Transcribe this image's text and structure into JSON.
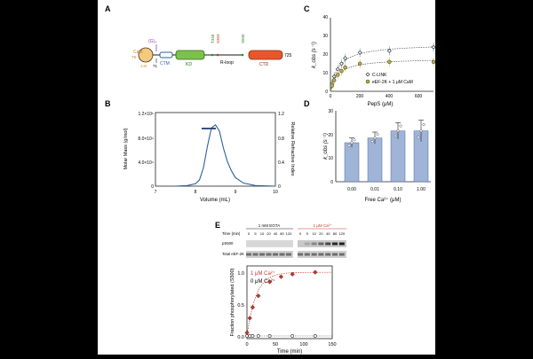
{
  "panels": {
    "A": {
      "label": "A",
      "domains": {
        "cam": "CaM",
        "cam_top": "79",
        "g": "(G)₄",
        "ctm": "CTM",
        "kd": "KD",
        "rloop": "R-loop",
        "ctd": "CTD",
        "pos_148": "148",
        "pos_71": "71",
        "t348": "T348",
        "s359": "S359",
        "s500": "S500",
        "end": "725"
      }
    },
    "B": {
      "label": "B",
      "left_ticks": [
        "1.2×10⁵",
        "8.0×10⁴",
        "4.0×10⁴",
        "0"
      ],
      "right_ticks": [
        "1.2",
        "0.8",
        "0.4",
        "0"
      ],
      "x_ticks": [
        "7",
        "8",
        "9",
        "10"
      ],
      "ylabel_left": "Molar Mass (g/mol)",
      "ylabel_right": "Relative Refractive Index",
      "xlabel": "Volume (mL)"
    },
    "C": {
      "label": "C",
      "y_ticks": [
        "0",
        "10",
        "20",
        "30",
        "40"
      ],
      "x_ticks": [
        "0",
        "200",
        "400",
        "600"
      ],
      "ylabel": "k_obs (s⁻¹)",
      "xlabel": "PepS (μM)",
      "legend": [
        "C-LINK",
        "eEF-2K + 1 μM CaM"
      ]
    },
    "D": {
      "label": "D",
      "y_ticks": [
        "0",
        "10",
        "20",
        "30"
      ],
      "x_ticks": [
        "0.00",
        "0.01",
        "0.10",
        "1.00"
      ],
      "ylabel": "k_obs (s⁻¹)",
      "xlabel": "Free Ca²⁺ (μM)"
    },
    "E": {
      "label": "E",
      "blot": {
        "egta_label": "1 mM EGTA",
        "ca_label": "1 μM Ca²⁺",
        "time_label": "Time (min)",
        "times": [
          "0",
          "5",
          "10",
          "20",
          "40",
          "80",
          "120"
        ],
        "row1": "pS500",
        "row2": "Total eEF-2K"
      },
      "y_ticks": [
        "0.0",
        "0.5",
        "1.0"
      ],
      "x_ticks": [
        "0",
        "50",
        "100",
        "150"
      ],
      "ylabel": "Fraction phosphorylated (S500)",
      "xlabel": "Time (min)",
      "legend_ca": "1 μM Ca²⁺",
      "legend_zero": "0 μM Ca²⁺"
    }
  },
  "colors": {
    "kd": "#7cc24a",
    "ctd": "#e8572a",
    "cam": "#f7c97e",
    "sec_curve": "#2f5f9e",
    "bar": "#9fb4d6",
    "red": "#c0392b",
    "olive": "#b5b33a",
    "orange": "#e99a2c",
    "purple": "#8e44ad"
  },
  "chart_data": [
    {
      "panel": "B",
      "type": "line",
      "x": [
        7.5,
        7.8,
        8.0,
        8.1,
        8.2,
        8.3,
        8.4,
        8.5,
        8.6,
        8.7,
        8.8,
        8.9,
        9.0,
        9.2,
        9.5,
        10.0
      ],
      "series": [
        {
          "values": [
            0.0,
            0.01,
            0.04,
            0.1,
            0.3,
            0.65,
            0.95,
            1.0,
            0.9,
            0.62,
            0.4,
            0.25,
            0.14,
            0.05,
            0.01,
            0.0
          ]
        }
      ],
      "xlim": [
        7,
        10
      ],
      "ylim": [
        0,
        1.2
      ]
    },
    {
      "panel": "C",
      "type": "scatter",
      "series": [
        {
          "name": "C-LINK",
          "x": [
            10,
            25,
            50,
            75,
            100,
            200,
            400,
            700
          ],
          "values": [
            4,
            8,
            12,
            15,
            18,
            21,
            22,
            24
          ]
        },
        {
          "name": "eEF-2K + 1 μM CaM",
          "x": [
            10,
            25,
            50,
            75,
            100,
            200,
            400,
            700
          ],
          "values": [
            3,
            6,
            9,
            11,
            13,
            15,
            16,
            16
          ]
        }
      ],
      "xlim": [
        0,
        700
      ],
      "ylim": [
        0,
        30
      ]
    },
    {
      "panel": "D",
      "type": "bar",
      "categories": [
        "0.00",
        "0.01",
        "0.10",
        "1.00"
      ],
      "values": [
        16.5,
        18.5,
        21.5,
        21.5
      ],
      "errors": [
        2,
        2.5,
        3.5,
        4.5
      ],
      "ylim": [
        0,
        30
      ]
    },
    {
      "panel": "E",
      "type": "scatter",
      "series": [
        {
          "name": "1 μM Ca²⁺",
          "x": [
            0,
            5,
            10,
            20,
            40,
            60,
            80,
            120
          ],
          "values": [
            0.05,
            0.28,
            0.45,
            0.63,
            0.85,
            0.93,
            0.97,
            1.0
          ]
        },
        {
          "name": "0 μM Ca²⁺",
          "x": [
            0,
            5,
            10,
            20,
            40,
            80,
            120
          ],
          "values": [
            0.0,
            0.0,
            0.0,
            0.0,
            0.0,
            0.0,
            0.0
          ]
        }
      ],
      "xlim": [
        0,
        150
      ],
      "ylim": [
        0,
        1.1
      ]
    }
  ]
}
